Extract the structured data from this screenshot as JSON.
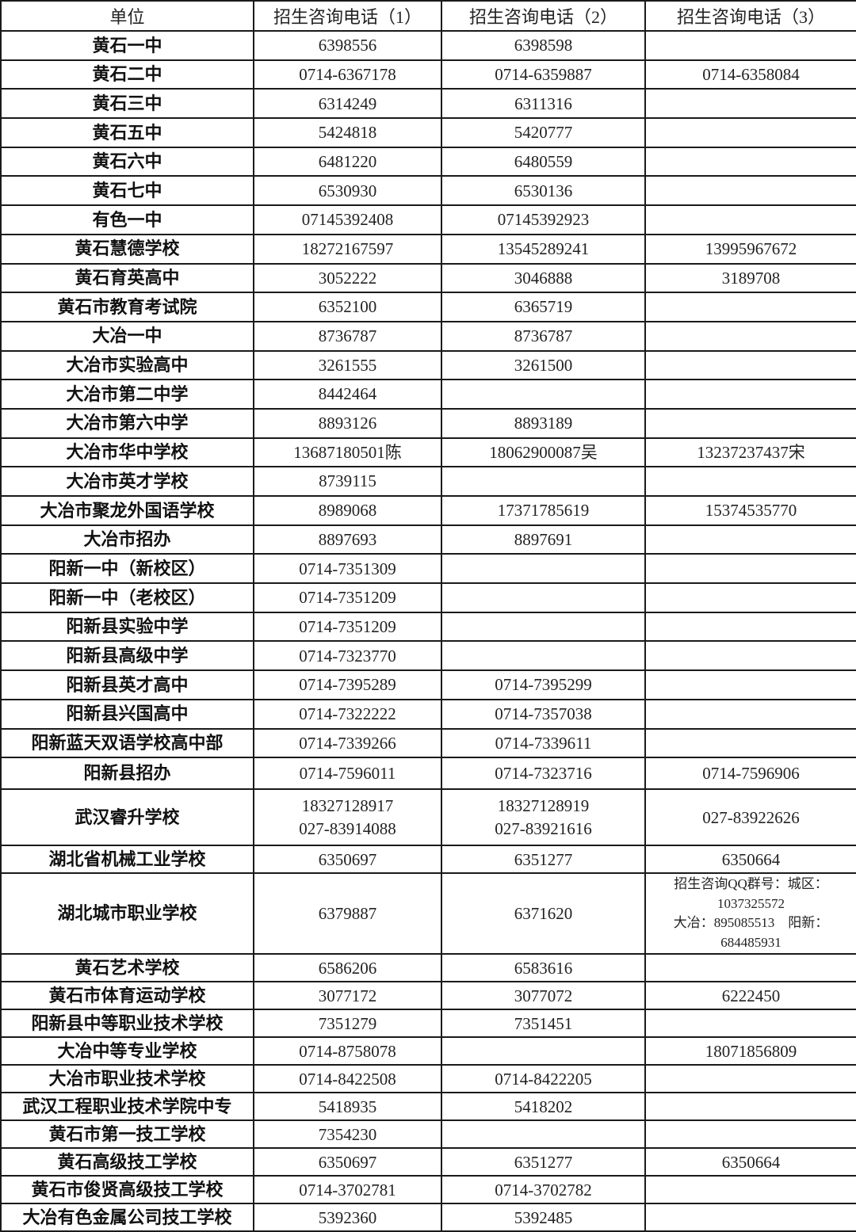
{
  "headers": [
    "单位",
    "招生咨询电话（1）",
    "招生咨询电话（2）",
    "招生咨询电话（3）"
  ],
  "rows": [
    [
      "黄石一中",
      "6398556",
      "6398598",
      ""
    ],
    [
      "黄石二中",
      "0714-6367178",
      "0714-6359887",
      "0714-6358084"
    ],
    [
      "黄石三中",
      "6314249",
      "6311316",
      ""
    ],
    [
      "黄石五中",
      "5424818",
      "5420777",
      ""
    ],
    [
      "黄石六中",
      "6481220",
      "6480559",
      ""
    ],
    [
      "黄石七中",
      "6530930",
      "6530136",
      ""
    ],
    [
      "有色一中",
      "07145392408",
      "07145392923",
      ""
    ],
    [
      "黄石慧德学校",
      "18272167597",
      "13545289241",
      "13995967672"
    ],
    [
      "黄石育英高中",
      "3052222",
      "3046888",
      "3189708"
    ],
    [
      "黄石市教育考试院",
      "6352100",
      "6365719",
      ""
    ],
    [
      "大冶一中",
      "8736787",
      "8736787",
      ""
    ],
    [
      "大冶市实验高中",
      "3261555",
      "3261500",
      ""
    ],
    [
      "大冶市第二中学",
      "8442464",
      "",
      ""
    ],
    [
      "大冶市第六中学",
      "8893126",
      "8893189",
      ""
    ],
    [
      "大冶市华中学校",
      "13687180501陈",
      "18062900087吴",
      "13237237437宋"
    ],
    [
      "大冶市英才学校",
      "8739115",
      "",
      ""
    ],
    [
      "大冶市聚龙外国语学校",
      "8989068",
      "17371785619",
      "15374535770"
    ],
    [
      "大冶市招办",
      "8897693",
      "8897691",
      ""
    ],
    [
      "阳新一中（新校区）",
      "0714-7351309",
      "",
      ""
    ],
    [
      "阳新一中（老校区）",
      "0714-7351209",
      "",
      ""
    ],
    [
      "阳新县实验中学",
      "0714-7351209",
      "",
      ""
    ],
    [
      "阳新县高级中学",
      "0714-7323770",
      "",
      ""
    ],
    [
      "阳新县英才高中",
      "0714-7395289",
      "0714-7395299",
      ""
    ],
    [
      "阳新县兴国高中",
      "0714-7322222",
      "0714-7357038",
      ""
    ],
    [
      "阳新蓝天双语学校高中部",
      "0714-7339266",
      "0714-7339611",
      ""
    ],
    [
      "阳新县招办",
      "0714-7596011",
      "0714-7323716",
      "0714-7596906"
    ],
    [
      "武汉睿升学校",
      "18327128917\n027-83914088",
      "18327128919\n027-83921616",
      "027-83922626"
    ],
    [
      "湖北省机械工业学校",
      "6350697",
      "6351277",
      "6350664"
    ],
    [
      "湖北城市职业学校",
      "6379887",
      "6371620",
      "招生咨询QQ群号：城区：1037325572\n大冶：895085513　阳新：684485931"
    ],
    [
      "黄石艺术学校",
      "6586206",
      "6583616",
      ""
    ],
    [
      "黄石市体育运动学校",
      "3077172",
      "3077072",
      "6222450"
    ],
    [
      "阳新县中等职业技术学校",
      "7351279",
      "7351451",
      ""
    ],
    [
      "大冶中等专业学校",
      "0714-8758078",
      "",
      "18071856809"
    ],
    [
      "大冶市职业技术学校",
      "0714-8422508",
      "0714-8422205",
      ""
    ],
    [
      "武汉工程职业技术学院中专",
      "5418935",
      "5418202",
      ""
    ],
    [
      "黄石市第一技工学校",
      "7354230",
      "",
      ""
    ],
    [
      "黄石高级技工学校",
      "6350697",
      "6351277",
      "6350664"
    ],
    [
      "黄石市俊贤高级技工学校",
      "0714-3702781",
      "0714-3702782",
      ""
    ],
    [
      "大冶有色金属公司技工学校",
      "5392360",
      "5392485",
      ""
    ]
  ]
}
